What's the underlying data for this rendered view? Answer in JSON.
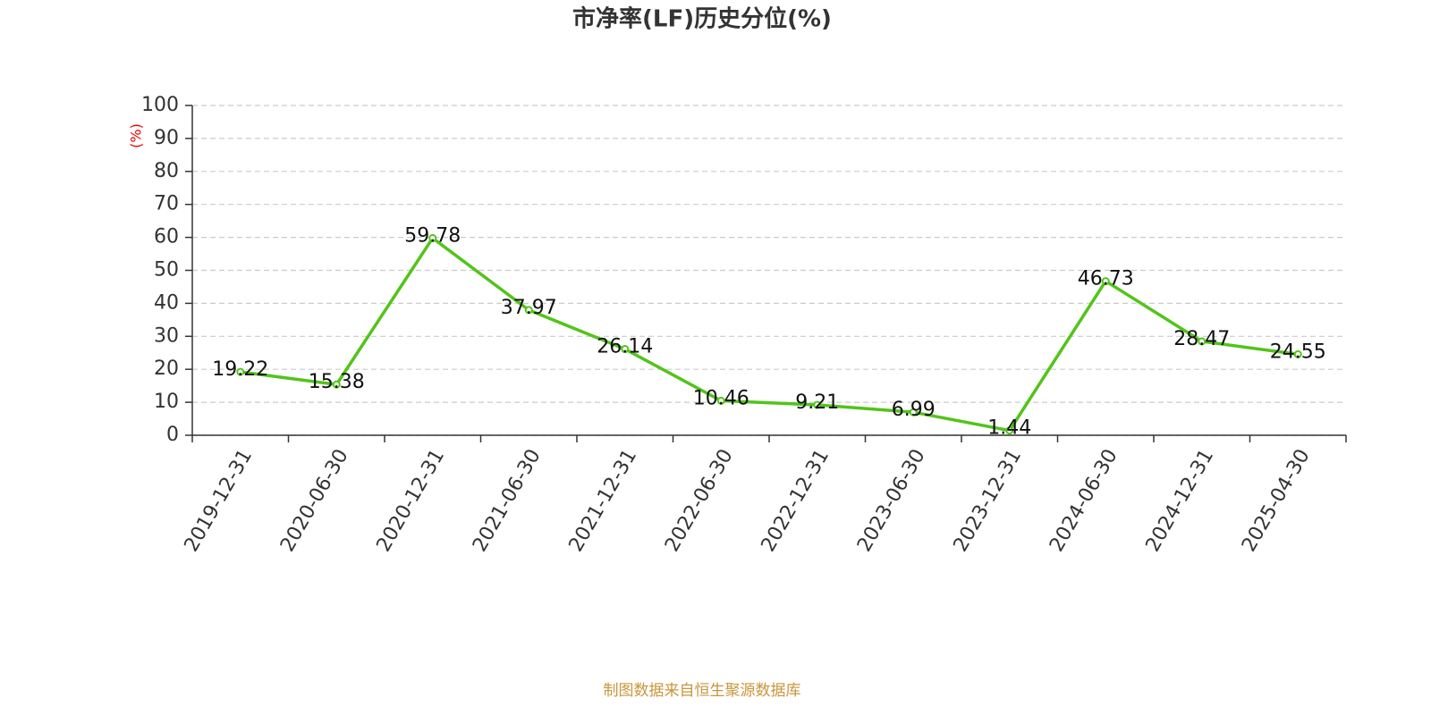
{
  "chart_data": {
    "type": "line",
    "title": "市净率(LF)历史分位(%)",
    "y_label": "(%)",
    "categories": [
      "2019-12-31",
      "2020-06-30",
      "2020-12-31",
      "2021-06-30",
      "2021-12-31",
      "2022-06-30",
      "2022-12-31",
      "2023-06-30",
      "2023-12-31",
      "2024-06-30",
      "2024-12-31",
      "2025-04-30"
    ],
    "values": [
      19.22,
      15.38,
      59.78,
      37.97,
      26.14,
      10.46,
      9.21,
      6.99,
      1.44,
      46.73,
      28.47,
      24.55
    ],
    "color": "#52c41a",
    "ylim": [
      0,
      100
    ],
    "yticks": [
      0,
      10,
      20,
      30,
      40,
      50,
      60,
      70,
      80,
      90,
      100
    ],
    "grid": true,
    "source": "制图数据来自恒生聚源数据库"
  }
}
